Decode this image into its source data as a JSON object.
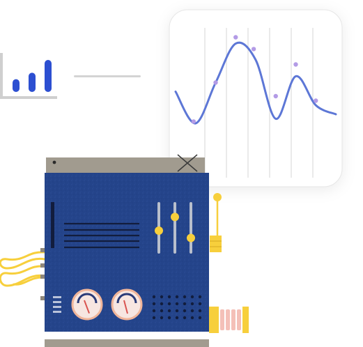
{
  "illustration": {
    "subject": "signal-processing-device",
    "colors": {
      "panel_blue": "#24448a",
      "panel_blue_light": "#2f56a5",
      "frame_gray": "#a19b8f",
      "frame_dark": "#8d877c",
      "accent_yellow": "#f7cf3c",
      "wave_blue": "#5d77d6",
      "dot_purple": "#b39be6",
      "bar_blue": "#2c4fd1",
      "gauge_face": "#f7e6e1",
      "gauge_ring": "#f0b59a",
      "gauge_needle": "#2a3b78",
      "spring_pink": "#f4c0b8",
      "card_bg": "#ffffff",
      "grid_line": "#d6d6d6"
    },
    "icons": [
      "bar-chart-icon",
      "waveform-chart",
      "x-mark-icon",
      "gauge-icon",
      "slider-icon"
    ]
  },
  "mini_chart": {
    "type": "bar",
    "values": [
      2,
      3,
      5
    ]
  },
  "wave_chart": {
    "type": "line",
    "series_points": [
      [
        0,
        0.45
      ],
      [
        1,
        0.1
      ],
      [
        2,
        0.55
      ],
      [
        3,
        0.98
      ],
      [
        4,
        0.8
      ],
      [
        5,
        0.15
      ],
      [
        6,
        0.62
      ],
      [
        7,
        0.3
      ],
      [
        8,
        0.2
      ]
    ],
    "dots": [
      [
        0.9,
        0.12
      ],
      [
        2.0,
        0.55
      ],
      [
        3.0,
        1.05
      ],
      [
        3.9,
        0.92
      ],
      [
        5.0,
        0.4
      ],
      [
        6.0,
        0.75
      ],
      [
        7.0,
        0.35
      ]
    ]
  },
  "sliders": {
    "levels": [
      0.3,
      0.58,
      0.15
    ]
  },
  "gauges": {
    "levels": [
      0.35,
      0.45
    ]
  }
}
